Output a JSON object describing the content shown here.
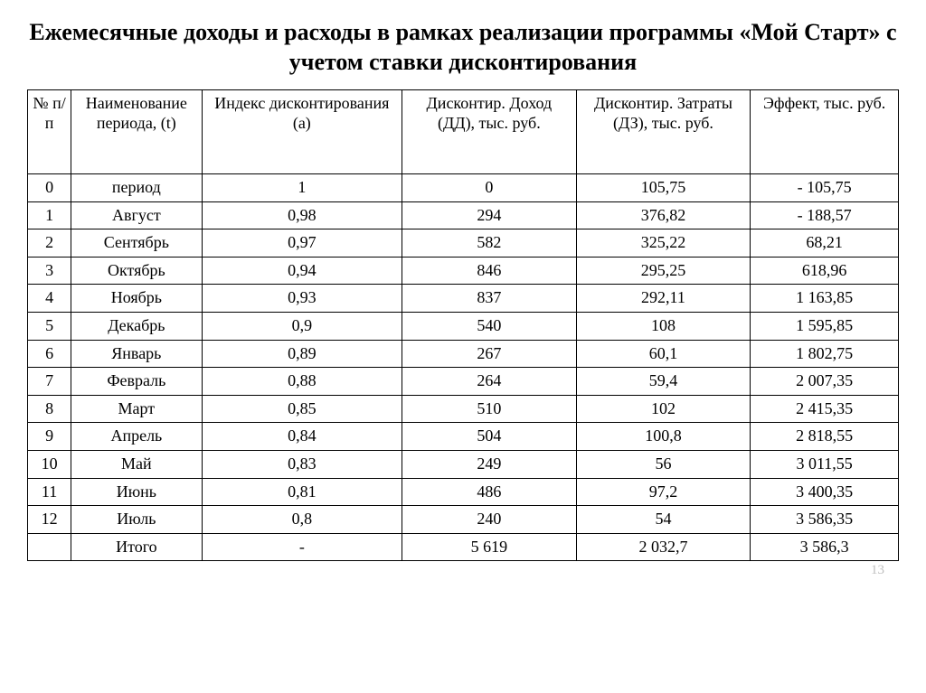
{
  "title": "Ежемесячные доходы и расходы в рамках реализации программы «Мой Старт» с учетом ставки дисконтирования",
  "page_number": "13",
  "table": {
    "type": "table",
    "border_color": "#000000",
    "background_color": "#ffffff",
    "text_color": "#000000",
    "font_family": "Times New Roman",
    "header_fontsize": 18,
    "cell_fontsize": 18,
    "column_widths_pct": [
      5,
      15,
      23,
      20,
      20,
      17
    ],
    "alignment": "center",
    "columns": [
      "№ п/п",
      "Наименование периода, (t)",
      "Индекс дисконтирования (а)",
      "Дисконтир. Доход (ДД), тыс. руб.",
      "Дисконтир. Затраты (ДЗ), тыс. руб.",
      "Эффект, тыс. руб."
    ],
    "rows": [
      [
        "0",
        "период",
        "1",
        "0",
        "105,75",
        "- 105,75"
      ],
      [
        "1",
        "Август",
        "0,98",
        "294",
        "376,82",
        "- 188,57"
      ],
      [
        "2",
        "Сентябрь",
        "0,97",
        "582",
        "325,22",
        "68,21"
      ],
      [
        "3",
        "Октябрь",
        "0,94",
        "846",
        "295,25",
        "618,96"
      ],
      [
        "4",
        "Ноябрь",
        "0,93",
        "837",
        "292,11",
        "1 163,85"
      ],
      [
        "5",
        "Декабрь",
        "0,9",
        "540",
        "108",
        "1 595,85"
      ],
      [
        "6",
        "Январь",
        "0,89",
        "267",
        "60,1",
        "1 802,75"
      ],
      [
        "7",
        "Февраль",
        "0,88",
        "264",
        "59,4",
        "2 007,35"
      ],
      [
        "8",
        "Март",
        "0,85",
        "510",
        "102",
        "2 415,35"
      ],
      [
        "9",
        "Апрель",
        "0,84",
        "504",
        "100,8",
        "2 818,55"
      ],
      [
        "10",
        "Май",
        "0,83",
        "249",
        "56",
        "3 011,55"
      ],
      [
        "11",
        "Июнь",
        "0,81",
        "486",
        "97,2",
        "3 400,35"
      ],
      [
        "12",
        "Июль",
        "0,8",
        "240",
        "54",
        "3 586,35"
      ],
      [
        "",
        "Итого",
        "-",
        "5 619",
        "2 032,7",
        "3 586,3"
      ]
    ]
  }
}
